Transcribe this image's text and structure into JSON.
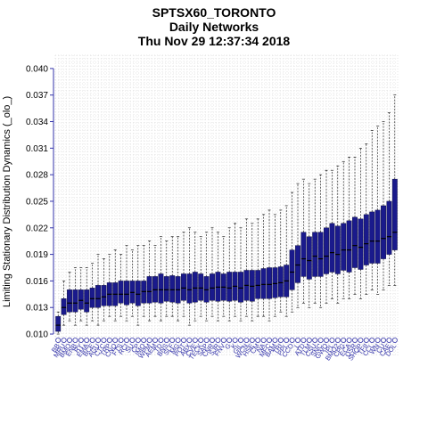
{
  "chart_data": {
    "type": "box",
    "title_lines": [
      "SPTSX60_TORONTO",
      "Daily Networks",
      "Thu Nov 29 12:37:34 2018"
    ],
    "ylabel": "Limiting Stationary Distribution Dynamics (_olo_)",
    "ylim": [
      0.0095,
      0.0415
    ],
    "yticks": [
      "0.010",
      "0.013",
      "0.016",
      "0.019",
      "0.022",
      "0.025",
      "0.028",
      "0.031",
      "0.034",
      "0.037",
      "0.040"
    ],
    "grid": true,
    "colors": {
      "box_fill": "#1a1a8c",
      "axis": "#3333aa",
      "tick_label": "#3333aa",
      "grid": "#cccccc"
    },
    "categories": [
      "BB",
      "MRU",
      "BMO",
      "ENB",
      "RY",
      "EMA",
      "BCE",
      "AGU",
      "CTC",
      "TRP",
      "CNQ",
      "FTS",
      "RCI",
      "SU",
      "CP",
      "IMO",
      "WPM",
      "AEM",
      "TD",
      "BNS",
      "SLF",
      "MG",
      "POT",
      "ABX",
      "CVE",
      "TECK",
      "SAP",
      "CNR",
      "SJR",
      "FNV",
      "G",
      "K",
      "GIL",
      "WCN",
      "HSE",
      "CM",
      "NA",
      "MFC",
      "BAM",
      "TRI",
      "PPL",
      "CCO",
      "L",
      "ATD",
      "TLM",
      "CSU",
      "SNC",
      "GWO",
      "IPL",
      "BMO2",
      "CPG",
      "ECA",
      "QSR",
      "SHOP",
      "TFII",
      "CCL",
      "WN",
      "CU",
      "CAE",
      "DOL"
    ],
    "series": [
      {
        "stats": [
          [
            0.01,
            0.0103,
            0.011,
            0.012,
            0.0125
          ],
          [
            0.011,
            0.0122,
            0.013,
            0.014,
            0.016
          ],
          [
            0.0115,
            0.0125,
            0.0135,
            0.015,
            0.017
          ],
          [
            0.011,
            0.0125,
            0.0135,
            0.015,
            0.0175
          ],
          [
            0.0115,
            0.0128,
            0.0138,
            0.015,
            0.0175
          ],
          [
            0.011,
            0.0125,
            0.0135,
            0.015,
            0.0175
          ],
          [
            0.0115,
            0.013,
            0.014,
            0.0152,
            0.018
          ],
          [
            0.011,
            0.013,
            0.014,
            0.0155,
            0.019
          ],
          [
            0.0115,
            0.0132,
            0.0142,
            0.0155,
            0.0185
          ],
          [
            0.012,
            0.0132,
            0.0145,
            0.0158,
            0.019
          ],
          [
            0.0115,
            0.0132,
            0.0145,
            0.0158,
            0.0195
          ],
          [
            0.012,
            0.0135,
            0.0145,
            0.016,
            0.019
          ],
          [
            0.0115,
            0.0133,
            0.0145,
            0.016,
            0.02
          ],
          [
            0.012,
            0.0135,
            0.0147,
            0.016,
            0.0195
          ],
          [
            0.011,
            0.0132,
            0.0145,
            0.016,
            0.02
          ],
          [
            0.012,
            0.0135,
            0.0148,
            0.016,
            0.02
          ],
          [
            0.0115,
            0.0135,
            0.0148,
            0.0165,
            0.0205
          ],
          [
            0.012,
            0.0136,
            0.015,
            0.0165,
            0.02
          ],
          [
            0.0115,
            0.0135,
            0.015,
            0.0168,
            0.021
          ],
          [
            0.012,
            0.0137,
            0.015,
            0.0165,
            0.0205
          ],
          [
            0.012,
            0.0136,
            0.015,
            0.0166,
            0.021
          ],
          [
            0.0115,
            0.0135,
            0.015,
            0.0165,
            0.021
          ],
          [
            0.012,
            0.0138,
            0.0152,
            0.0168,
            0.0215
          ],
          [
            0.011,
            0.0135,
            0.015,
            0.0168,
            0.022
          ],
          [
            0.0115,
            0.0136,
            0.0152,
            0.017,
            0.0215
          ],
          [
            0.012,
            0.0138,
            0.0152,
            0.0168,
            0.021
          ],
          [
            0.0115,
            0.0136,
            0.015,
            0.0165,
            0.0215
          ],
          [
            0.012,
            0.0138,
            0.0152,
            0.0168,
            0.022
          ],
          [
            0.0115,
            0.0137,
            0.0153,
            0.017,
            0.0215
          ],
          [
            0.012,
            0.0138,
            0.0153,
            0.0168,
            0.021
          ],
          [
            0.0115,
            0.0137,
            0.0152,
            0.017,
            0.022
          ],
          [
            0.012,
            0.0138,
            0.0154,
            0.017,
            0.0225
          ],
          [
            0.0115,
            0.0136,
            0.0152,
            0.017,
            0.022
          ],
          [
            0.012,
            0.0138,
            0.0155,
            0.0172,
            0.023
          ],
          [
            0.0115,
            0.0137,
            0.0154,
            0.0172,
            0.0225
          ],
          [
            0.012,
            0.014,
            0.0155,
            0.0172,
            0.023
          ],
          [
            0.012,
            0.014,
            0.0156,
            0.0174,
            0.0235
          ],
          [
            0.0115,
            0.014,
            0.0156,
            0.0175,
            0.024
          ],
          [
            0.012,
            0.0141,
            0.0157,
            0.0175,
            0.0235
          ],
          [
            0.0125,
            0.0142,
            0.0158,
            0.0176,
            0.024
          ],
          [
            0.012,
            0.0142,
            0.016,
            0.0178,
            0.0245
          ],
          [
            0.0125,
            0.015,
            0.017,
            0.0195,
            0.026
          ],
          [
            0.013,
            0.0158,
            0.0178,
            0.02,
            0.027
          ],
          [
            0.0135,
            0.0165,
            0.0185,
            0.0215,
            0.0275
          ],
          [
            0.013,
            0.0162,
            0.0183,
            0.021,
            0.027
          ],
          [
            0.0135,
            0.0165,
            0.0188,
            0.0215,
            0.0275
          ],
          [
            0.013,
            0.0165,
            0.0185,
            0.0215,
            0.028
          ],
          [
            0.0135,
            0.0168,
            0.0188,
            0.022,
            0.0285
          ],
          [
            0.014,
            0.017,
            0.0192,
            0.0225,
            0.0285
          ],
          [
            0.0135,
            0.0168,
            0.019,
            0.0222,
            0.029
          ],
          [
            0.014,
            0.0172,
            0.0195,
            0.0225,
            0.0295
          ],
          [
            0.014,
            0.017,
            0.0195,
            0.0228,
            0.03
          ],
          [
            0.0145,
            0.0175,
            0.02,
            0.0232,
            0.03
          ],
          [
            0.014,
            0.0173,
            0.0198,
            0.023,
            0.031
          ],
          [
            0.0145,
            0.0178,
            0.0202,
            0.0235,
            0.0315
          ],
          [
            0.015,
            0.018,
            0.0205,
            0.0238,
            0.033
          ],
          [
            0.0145,
            0.018,
            0.0205,
            0.024,
            0.0335
          ],
          [
            0.015,
            0.0185,
            0.0208,
            0.0245,
            0.034
          ],
          [
            0.0155,
            0.019,
            0.021,
            0.025,
            0.035
          ],
          [
            0.0155,
            0.0195,
            0.0215,
            0.0275,
            0.037
          ]
        ]
      }
    ]
  }
}
